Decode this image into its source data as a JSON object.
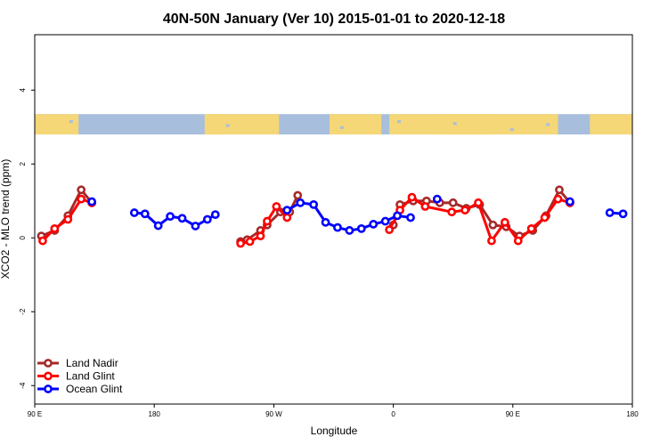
{
  "chart_data": {
    "type": "line",
    "title": "40N-50N January (Ver 10)   2015-01-01 to 2020-12-18",
    "xlabel": "Longitude",
    "ylabel": "XCO2 - MLO trend (ppm)",
    "xlim": [
      90,
      540
    ],
    "ylim": [
      -4.5,
      5.5
    ],
    "x_ticks": [
      {
        "value": 90,
        "label": "90 E"
      },
      {
        "value": 180,
        "label": "180"
      },
      {
        "value": 270,
        "label": "90 W"
      },
      {
        "value": 360,
        "label": "0"
      },
      {
        "value": 450,
        "label": "90 E"
      },
      {
        "value": 540,
        "label": "180"
      }
    ],
    "y_ticks": [
      {
        "value": -4,
        "label": "-4"
      },
      {
        "value": -2,
        "label": "-2"
      },
      {
        "value": 0,
        "label": "0"
      },
      {
        "value": 2,
        "label": "2"
      },
      {
        "value": 4,
        "label": "4"
      }
    ],
    "map_strip": {
      "y_top": 3.35,
      "y_bottom": 2.8,
      "land_color": "#f5d778",
      "ocean_color": "#a7bedc"
    },
    "legend": {
      "position": "bottom-left"
    },
    "series": [
      {
        "name": "Land Nadir",
        "color": "#a52a2a",
        "points": [
          [
            [
              95,
              0.05
            ],
            [
              105,
              0.2
            ],
            [
              115,
              0.6
            ],
            [
              125,
              1.3
            ],
            [
              133,
              0.95
            ]
          ],
          [
            [
              245,
              -0.1
            ],
            [
              250,
              -0.05
            ],
            [
              260,
              0.2
            ],
            [
              265,
              0.35
            ],
            [
              275,
              0.7
            ],
            [
              282,
              0.7
            ],
            [
              288,
              1.15
            ]
          ],
          [
            [
              360,
              0.35
            ],
            [
              365,
              0.9
            ],
            [
              375,
              1.0
            ],
            [
              385,
              1.0
            ],
            [
              395,
              0.95
            ],
            [
              405,
              0.95
            ],
            [
              415,
              0.8
            ],
            [
              425,
              0.9
            ],
            [
              435,
              0.35
            ],
            [
              445,
              0.3
            ],
            [
              455,
              0.05
            ],
            [
              465,
              0.2
            ],
            [
              475,
              0.6
            ],
            [
              485,
              1.3
            ],
            [
              493,
              0.95
            ]
          ]
        ]
      },
      {
        "name": "Land Glint",
        "color": "#ff0000",
        "points": [
          [
            [
              96,
              -0.08
            ],
            [
              105,
              0.25
            ],
            [
              115,
              0.5
            ],
            [
              125,
              1.05
            ],
            [
              133,
              0.95
            ]
          ],
          [
            [
              245,
              -0.15
            ],
            [
              252,
              -0.1
            ],
            [
              260,
              0.05
            ],
            [
              265,
              0.45
            ],
            [
              272,
              0.85
            ],
            [
              280,
              0.55
            ]
          ],
          [
            [
              357,
              0.22
            ],
            [
              365,
              0.75
            ],
            [
              374,
              1.1
            ],
            [
              384,
              0.85
            ],
            [
              404,
              0.7
            ],
            [
              414,
              0.75
            ],
            [
              424,
              0.95
            ],
            [
              434,
              -0.08
            ],
            [
              444,
              0.42
            ],
            [
              454,
              -0.08
            ],
            [
              464,
              0.25
            ],
            [
              474,
              0.55
            ],
            [
              484,
              1.05
            ],
            [
              493,
              0.95
            ]
          ]
        ]
      },
      {
        "name": "Ocean Glint",
        "color": "#0000ff",
        "points": [
          [
            [
              133,
              0.98
            ]
          ],
          [
            [
              165,
              0.68
            ],
            [
              173,
              0.65
            ],
            [
              183,
              0.33
            ],
            [
              192,
              0.58
            ],
            [
              201,
              0.53
            ],
            [
              211,
              0.32
            ],
            [
              220,
              0.5
            ],
            [
              226,
              0.63
            ]
          ],
          [
            [
              280,
              0.75
            ],
            [
              290,
              0.95
            ],
            [
              300,
              0.9
            ],
            [
              309,
              0.42
            ],
            [
              318,
              0.28
            ],
            [
              327,
              0.2
            ],
            [
              336,
              0.25
            ],
            [
              345,
              0.37
            ],
            [
              354,
              0.45
            ],
            [
              363,
              0.6
            ],
            [
              373,
              0.55
            ]
          ],
          [
            [
              393,
              1.05
            ]
          ],
          [
            [
              493,
              0.98
            ]
          ],
          [
            [
              523,
              0.68
            ],
            [
              533,
              0.65
            ]
          ]
        ]
      }
    ]
  }
}
